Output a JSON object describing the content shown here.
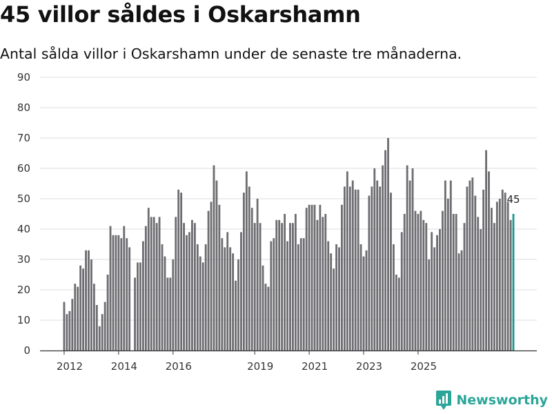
{
  "title": "45 villor såldes i Oskarshamn",
  "subtitle": "Antal sålda villor i Oskarshamn under de senaste tre månaderna.",
  "brand": {
    "name": "Newsworthy",
    "icon": "newsworthy-logo-icon",
    "color": "#2aa598"
  },
  "colors": {
    "bar": "#6d6c70",
    "highlight": "#1a9a8f",
    "grid": "#dcdcdc",
    "axis": "#333333"
  },
  "chart_data": {
    "type": "bar",
    "title": "45 villor såldes i Oskarshamn",
    "xlabel": "",
    "ylabel": "",
    "ylim": [
      0,
      90
    ],
    "yticks": [
      0,
      10,
      20,
      30,
      40,
      50,
      60,
      70,
      80,
      90
    ],
    "xticks": [
      {
        "label": "2012",
        "index": 0
      },
      {
        "label": "2014",
        "index": 20
      },
      {
        "label": "2016",
        "index": 40
      },
      {
        "label": "2019",
        "index": 70
      },
      {
        "label": "2021",
        "index": 90
      },
      {
        "label": "2023",
        "index": 110
      },
      {
        "label": "2025",
        "index": 130
      }
    ],
    "series": [
      {
        "name": "Antal sålda villor",
        "values": [
          16,
          12,
          13,
          17,
          22,
          21,
          28,
          27,
          33,
          33,
          30,
          22,
          15,
          8,
          12,
          16,
          25,
          41,
          38,
          38,
          38,
          37,
          41,
          37,
          34,
          0,
          24,
          29,
          29,
          36,
          41,
          47,
          44,
          44,
          42,
          44,
          35,
          31,
          24,
          24,
          30,
          44,
          53,
          52,
          42,
          38,
          39,
          43,
          42,
          35,
          31,
          29,
          35,
          46,
          49,
          61,
          56,
          48,
          37,
          34,
          39,
          34,
          32,
          23,
          30,
          39,
          52,
          59,
          54,
          47,
          42,
          50,
          42,
          28,
          22,
          21,
          36,
          37,
          43,
          43,
          42,
          45,
          36,
          42,
          42,
          45,
          35,
          37,
          37,
          47,
          48,
          48,
          48,
          43,
          48,
          44,
          45,
          36,
          32,
          27,
          35,
          34,
          48,
          54,
          59,
          54,
          56,
          53,
          53,
          35,
          31,
          33,
          51,
          54,
          60,
          56,
          54,
          61,
          66,
          70,
          52,
          35,
          25,
          24,
          39,
          45,
          61,
          56,
          60,
          46,
          45,
          46,
          43,
          42,
          30,
          39,
          34,
          38,
          40,
          46,
          56,
          50,
          56,
          45,
          45,
          32,
          33,
          42,
          54,
          56,
          57,
          51,
          44,
          40,
          53,
          66,
          59,
          47,
          42,
          49,
          50,
          53,
          52,
          49,
          43,
          45
        ]
      }
    ],
    "highlight_last": true,
    "last_value_label": "45"
  }
}
